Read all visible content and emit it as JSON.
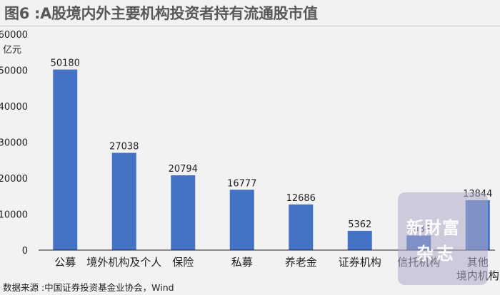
{
  "header": {
    "title": "图6 :A股境内外主要机构投资者持有流通股市值"
  },
  "watermark": {
    "line1": "新財富",
    "line2": "杂志"
  },
  "source": "数据来源 :中国证券投资基金业协会，Wind",
  "colors": {
    "bar": "#4472c4",
    "background": "#f2f2f2",
    "axis": "#231f20"
  },
  "chart_data": {
    "type": "bar",
    "title": "图6 :A股境内外主要机构投资者持有流通股市值",
    "ylabel": "亿元",
    "ylim": [
      0,
      60000
    ],
    "yticks": [
      "0",
      "10000",
      "20000",
      "30000",
      "40000",
      "50000",
      "60000"
    ],
    "categories": [
      "公募",
      "境外机构及个人",
      "保险",
      "私募",
      "养老金",
      "证券机构",
      "信托机构",
      "其他境内机构"
    ],
    "category_lines": [
      [
        "公募"
      ],
      [
        "境外机构及个人"
      ],
      [
        "保险"
      ],
      [
        "私募"
      ],
      [
        "养老金"
      ],
      [
        "证券机构"
      ],
      [
        "信托机构"
      ],
      [
        "其他",
        "境内机构"
      ]
    ],
    "values": [
      50180,
      27038,
      20794,
      16777,
      12686,
      5362,
      4084,
      13844
    ],
    "value_labels": [
      "50180",
      "27038",
      "20794",
      "16777",
      "12686",
      "5362",
      "4084",
      "13844"
    ],
    "grid": false,
    "legend": "none"
  }
}
